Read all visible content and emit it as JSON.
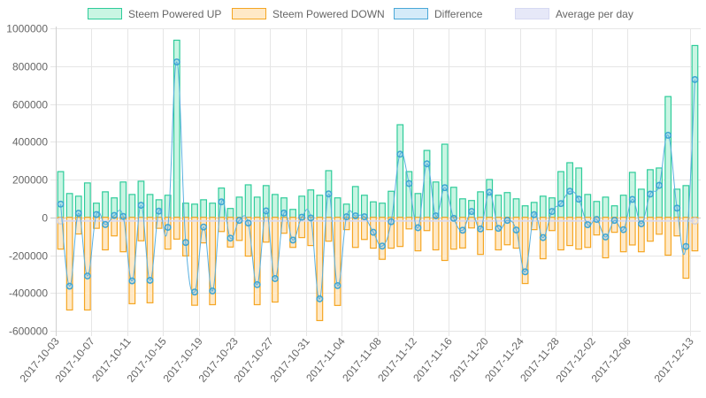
{
  "chart_data": {
    "type": "bar",
    "title": "",
    "xlabel": "",
    "ylabel": "",
    "ylim": [
      -600000,
      1000000
    ],
    "yticks": [
      "1000000",
      "800000",
      "600000",
      "400000",
      "200000",
      "0",
      "-200000",
      "-400000",
      "-600000"
    ],
    "ytick_values": [
      1000000,
      800000,
      600000,
      400000,
      200000,
      0,
      -200000,
      -400000,
      -600000
    ],
    "grid": true,
    "legend_position": "top",
    "legend": [
      {
        "name": "Steem Powered UP",
        "fill": "#c9f5e3",
        "stroke": "#2ecc9a"
      },
      {
        "name": "Steem Powered DOWN",
        "fill": "#ffe9c7",
        "stroke": "#f5a623"
      },
      {
        "name": "Difference",
        "fill": "#d4ebf9",
        "stroke": "#4aa8d8"
      },
      {
        "name": "Average per day",
        "fill": "#e6e8f8",
        "stroke": "#d6d9f2"
      }
    ],
    "x_tick_labels": [
      {
        "index": 0,
        "label": "2017-10-03"
      },
      {
        "index": 4,
        "label": "2017-10-07"
      },
      {
        "index": 8,
        "label": "2017-10-11"
      },
      {
        "index": 12,
        "label": "2017-10-15"
      },
      {
        "index": 16,
        "label": "2017-10-19"
      },
      {
        "index": 20,
        "label": "2017-10-23"
      },
      {
        "index": 24,
        "label": "2017-10-27"
      },
      {
        "index": 28,
        "label": "2017-10-31"
      },
      {
        "index": 32,
        "label": "2017-11-04"
      },
      {
        "index": 36,
        "label": "2017-11-08"
      },
      {
        "index": 40,
        "label": "2017-11-12"
      },
      {
        "index": 44,
        "label": "2017-11-16"
      },
      {
        "index": 48,
        "label": "2017-11-20"
      },
      {
        "index": 52,
        "label": "2017-11-24"
      },
      {
        "index": 56,
        "label": "2017-11-28"
      },
      {
        "index": 60,
        "label": "2017-12-02"
      },
      {
        "index": 64,
        "label": "2017-12-06"
      },
      {
        "index": 71,
        "label": "2017-12-13"
      }
    ],
    "start_date": "2017-10-03",
    "end_date": "2017-12-13",
    "num_days": 72,
    "series": [
      {
        "name": "Steem Powered UP",
        "values": [
          242000,
          126000,
          112000,
          182000,
          75000,
          135000,
          103000,
          187000,
          121000,
          191000,
          121000,
          93000,
          117000,
          937000,
          75000,
          70000,
          93000,
          75000,
          155000,
          47000,
          107000,
          172000,
          107000,
          168000,
          121000,
          103000,
          42000,
          112000,
          145000,
          117000,
          247000,
          103000,
          70000,
          163000,
          117000,
          82000,
          75000,
          138000,
          490000,
          242000,
          126000,
          354000,
          187000,
          387000,
          159000,
          98000,
          89000,
          135000,
          200000,
          117000,
          131000,
          98000,
          61000,
          79000,
          112000,
          103000,
          242000,
          289000,
          261000,
          121000,
          84000,
          107000,
          61000,
          117000,
          238000,
          149000,
          252000,
          261000,
          639000,
          149000,
          168000,
          909000
        ]
      },
      {
        "name": "Steem Powered DOWN",
        "values": [
          -168000,
          -490000,
          -88000,
          -490000,
          -58000,
          -172000,
          -98000,
          -182000,
          -457000,
          -124000,
          -452000,
          -58000,
          -168000,
          -115000,
          -204000,
          -465000,
          -135000,
          -462000,
          -75000,
          -157000,
          -122000,
          -205000,
          -462000,
          -131000,
          -448000,
          -84000,
          -159000,
          -107000,
          -149000,
          -546000,
          -126000,
          -466000,
          -65000,
          -159000,
          -117000,
          -163000,
          -222000,
          -163000,
          -154000,
          -61000,
          -177000,
          -70000,
          -172000,
          -228000,
          -168000,
          -162000,
          -56000,
          -196000,
          -65000,
          -172000,
          -145000,
          -163000,
          -350000,
          -65000,
          -219000,
          -70000,
          -172000,
          -149000,
          -168000,
          -159000,
          -93000,
          -214000,
          -79000,
          -182000,
          -146000,
          -182000,
          -126000,
          -89000,
          -200000,
          -98000,
          -322000,
          -177000
        ]
      },
      {
        "name": "Difference",
        "values": [
          70000,
          -364000,
          22000,
          -310000,
          15000,
          -38000,
          10000,
          5000,
          -336000,
          64000,
          -333000,
          33000,
          -53000,
          822000,
          -133000,
          -395000,
          -51000,
          -389000,
          82000,
          -110000,
          -16000,
          -30000,
          -356000,
          34000,
          -324000,
          23000,
          -120000,
          1000,
          -3000,
          -431000,
          124000,
          -361000,
          3000,
          8000,
          3000,
          -79000,
          -152000,
          -23000,
          334000,
          179000,
          -55000,
          283000,
          8000,
          157000,
          -5000,
          -68000,
          31000,
          -61000,
          133000,
          -58000,
          -16000,
          -67000,
          -288000,
          14000,
          -107000,
          31000,
          73000,
          138000,
          96000,
          -39000,
          -11000,
          -104000,
          -16000,
          -65000,
          95000,
          -34000,
          123000,
          169000,
          434000,
          49000,
          -154000,
          729000
        ]
      },
      {
        "name": "Average per day",
        "values": [
          -19000,
          -19000
        ]
      }
    ]
  }
}
